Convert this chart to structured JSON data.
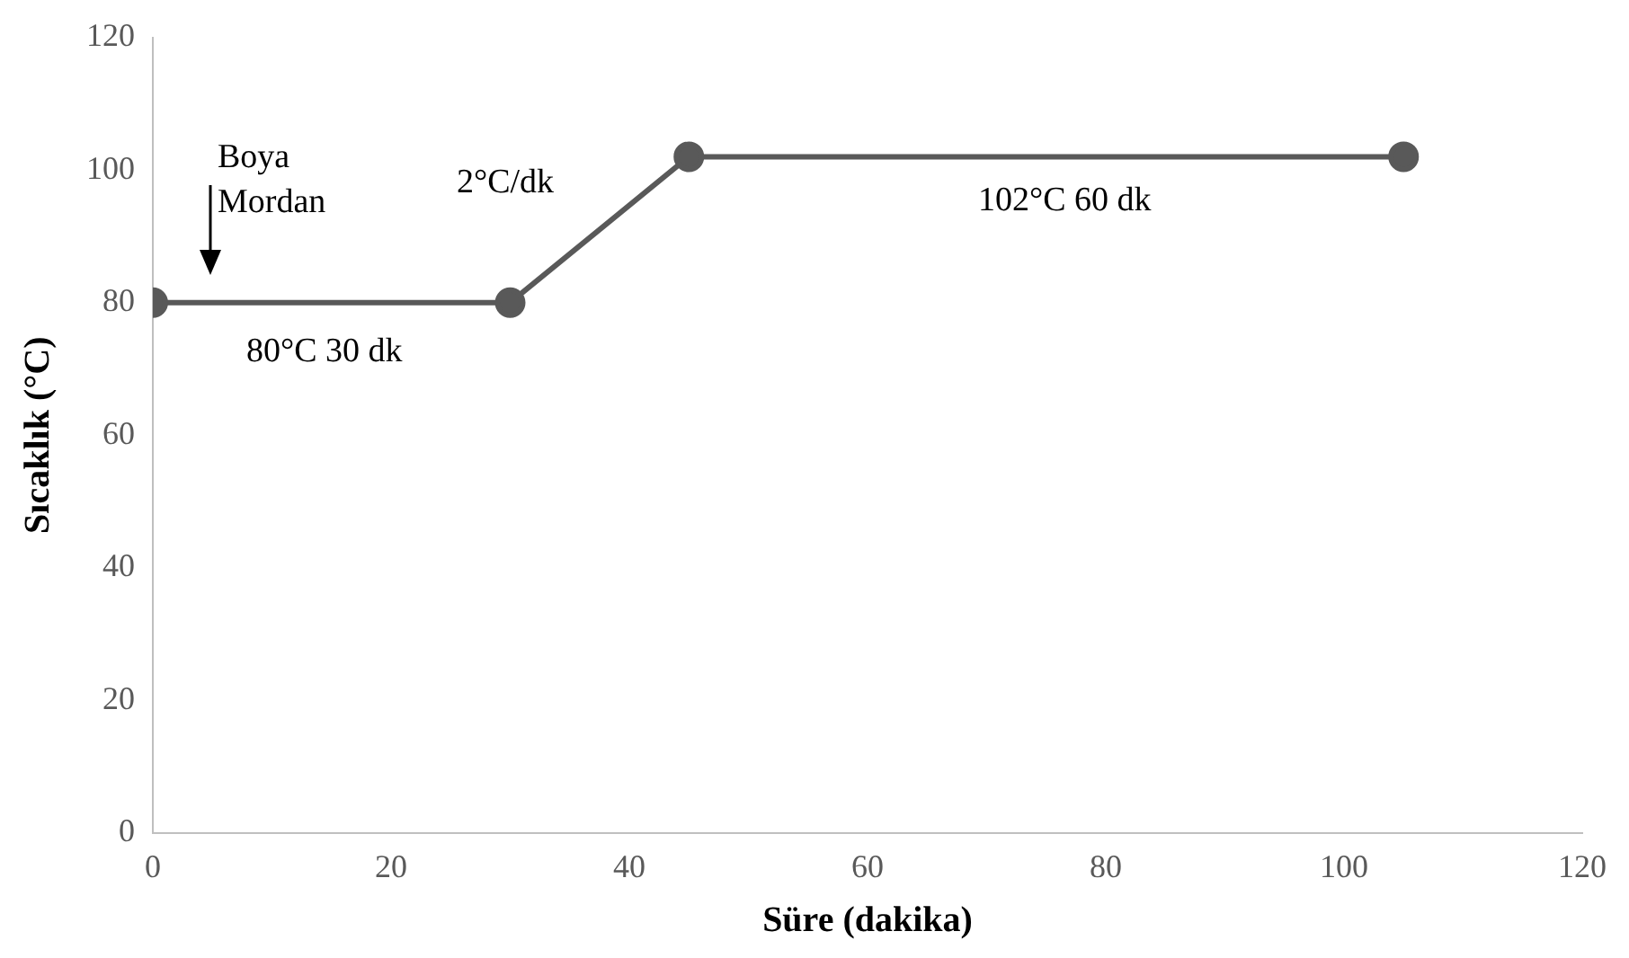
{
  "chart_data": {
    "type": "line",
    "xlabel": "Süre (dakika)",
    "ylabel": "Sıcaklık (°C)",
    "x": [
      0,
      30,
      45,
      105
    ],
    "series": [
      {
        "color": "#595959",
        "values": [
          80,
          80,
          102,
          102
        ]
      }
    ],
    "xlim": [
      0,
      120
    ],
    "xticks": [
      0,
      20,
      40,
      60,
      80,
      100,
      120
    ],
    "ylim": [
      0,
      120
    ],
    "yticks": [
      0,
      20,
      40,
      60,
      80,
      100,
      120
    ],
    "grid": false,
    "legend": false,
    "marker": "circle",
    "line_style": "solid",
    "annotations": [
      "Boya\nMordan",
      "80°C 30 dk",
      "2°C/dk",
      "102°C 60 dk"
    ]
  }
}
